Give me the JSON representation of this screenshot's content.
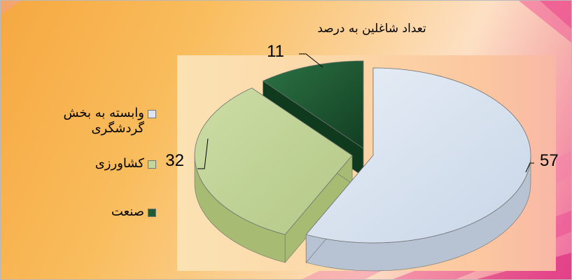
{
  "colors": {
    "tourism": "#dbe5f1",
    "agriculture": "#c3d69b",
    "industry": "#1e5b33"
  },
  "chart_data": {
    "type": "pie",
    "title": "تعداد شاغلین به درصد",
    "categories": [
      "وابسته به بخش گردشگری",
      "کشاورزی",
      "صنعت"
    ],
    "values": [
      57,
      32,
      11
    ],
    "data_labels": [
      "57",
      "32",
      "11"
    ],
    "legend_position": "left",
    "exploded": true,
    "three_d": true
  },
  "legend": [
    {
      "label": "وابسته به بخش\nگردشگری",
      "color": "#dbe5f1"
    },
    {
      "label": "کشاورزی",
      "color": "#c3d69b"
    },
    {
      "label": "صنعت",
      "color": "#1e5b33"
    }
  ]
}
